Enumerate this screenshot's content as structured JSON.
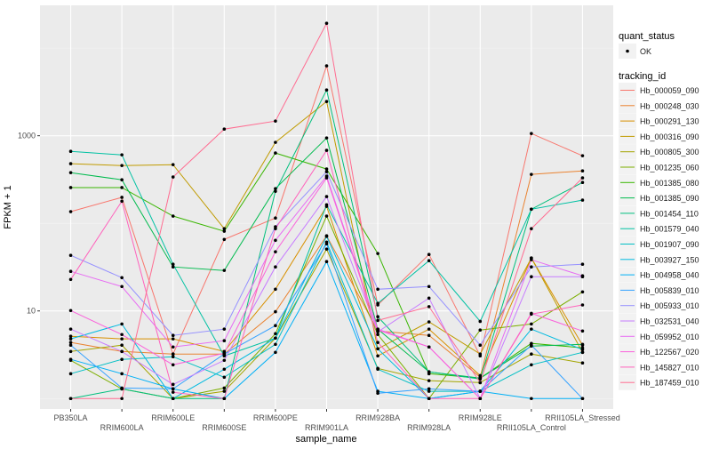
{
  "chart_data": {
    "type": "line",
    "xlabel": "sample_name",
    "ylabel": "FPKM + 1",
    "y_scale": "log10",
    "ylim": [
      0.76,
      30800
    ],
    "y_ticks": [
      10,
      1000
    ],
    "grid": true,
    "background": "#EBEBEB",
    "legend_position": "right",
    "categories": [
      "PB350LA",
      "RRIM600LA",
      "RRIM600LE",
      "RRIM600SE",
      "RRIM600PE",
      "RRIM901LA",
      "RRIM928BA",
      "RRIM928LA",
      "RRIM928LE",
      "RRII105LA_Control",
      "RRII105LA_Stressed"
    ],
    "shape_legend": {
      "title": "quant_status",
      "entries": [
        "OK"
      ]
    },
    "color_legend_title": "tracking_id",
    "series": [
      {
        "name": "Hb_000059_090",
        "color": "#F8766D",
        "values": [
          136,
          198,
          3.22,
          65.5,
          115,
          6270,
          11.7,
          44.1,
          3.07,
          1060,
          591
        ]
      },
      {
        "name": "Hb_000248_030",
        "color": "#EA8331",
        "values": [
          4.37,
          3.45,
          3.22,
          3.22,
          9.8,
          72.1,
          5.9,
          5.26,
          1.75,
          362,
          397
        ]
      },
      {
        "name": "Hb_000291_130",
        "color": "#D89000",
        "values": [
          5.14,
          4.8,
          4.8,
          3.45,
          17.7,
          156,
          3.07,
          6.2,
          1.83,
          40.2,
          4.07
        ]
      },
      {
        "name": "Hb_000316_090",
        "color": "#C09B00",
        "values": [
          480,
          457,
          468,
          86.9,
          840,
          2460,
          3.7,
          7.5,
          3.22,
          40.2,
          3.37
        ]
      },
      {
        "name": "Hb_000805_300",
        "color": "#A3A500",
        "values": [
          3.45,
          4.07,
          1,
          1.21,
          4.9,
          50.8,
          2.21,
          1.6,
          1.52,
          3.22,
          2.55
        ]
      },
      {
        "name": "Hb_001235_060",
        "color": "#7CAE00",
        "values": [
          2.73,
          1.29,
          1,
          1.32,
          5.5,
          121,
          5.38,
          1,
          6.05,
          7.1,
          16.5
        ]
      },
      {
        "name": "Hb_001385_080",
        "color": "#39B600",
        "values": [
          256,
          256,
          121,
          81.3,
          635,
          417,
          45.2,
          1.92,
          1.71,
          4.26,
          3.79
        ]
      },
      {
        "name": "Hb_001385_090",
        "color": "#00BB4E",
        "values": [
          379,
          314,
          31.8,
          29,
          249,
          943,
          6.2,
          2.02,
          1.71,
          3.97,
          4.16
        ]
      },
      {
        "name": "Hb_001454_110",
        "color": "#00BF7D",
        "values": [
          1,
          1.29,
          1,
          1,
          232,
          3330,
          8.6,
          2.02,
          1.67,
          145,
          293
        ]
      },
      {
        "name": "Hb_001579_040",
        "color": "#00C1A3",
        "values": [
          664,
          605,
          34.1,
          3.07,
          4.9,
          163,
          12.2,
          37.5,
          7.6,
          145,
          184
        ]
      },
      {
        "name": "Hb_001907_090",
        "color": "#00BFC4",
        "values": [
          1.92,
          2.8,
          3.0,
          1.75,
          4.16,
          61.1,
          2.16,
          1.21,
          1.21,
          2.43,
          3.37
        ]
      },
      {
        "name": "Hb_003927_150",
        "color": "#00BAE0",
        "values": [
          4.8,
          7.1,
          1,
          2.16,
          4.9,
          70.9,
          3.7,
          1,
          1.21,
          6.2,
          3.62
        ]
      },
      {
        "name": "Hb_004958_040",
        "color": "#00B0F6",
        "values": [
          2.8,
          1.92,
          1.29,
          1,
          3.37,
          36.6,
          1.21,
          1,
          1.21,
          1,
          1
        ]
      },
      {
        "name": "Hb_005839_010",
        "color": "#35A2FF",
        "values": [
          4.07,
          1.32,
          1.29,
          3.22,
          6.8,
          58.4,
          1.15,
          1.29,
          1.21,
          4.07,
          1
        ]
      },
      {
        "name": "Hb_005933_010",
        "color": "#9590FF",
        "values": [
          43.1,
          24,
          5.26,
          6.2,
          91.4,
          388,
          17.7,
          19,
          4.07,
          31.8,
          34.1
        ]
      },
      {
        "name": "Hb_032531_040",
        "color": "#C77CFF",
        "values": [
          6.2,
          3.45,
          1.45,
          2.73,
          31.8,
          202,
          5.77,
          14,
          1,
          24.6,
          24.6
        ]
      },
      {
        "name": "Hb_059952_010",
        "color": "#E76BF3",
        "values": [
          28.3,
          19,
          3.88,
          4.57,
          64,
          346,
          6.2,
          3.88,
          1,
          38.4,
          25.2
        ]
      },
      {
        "name": "Hb_122567_020",
        "color": "#FA62DB",
        "values": [
          10.1,
          5.38,
          2.43,
          3.29,
          47.4,
          330,
          6.05,
          3.88,
          1,
          9.4,
          5.9
        ]
      },
      {
        "name": "Hb_145827_010",
        "color": "#FF62BC",
        "values": [
          22.9,
          179,
          1.18,
          1,
          86.9,
          681,
          4.37,
          1,
          1,
          9.2,
          11.7
        ]
      },
      {
        "name": "Hb_187459_010",
        "color": "#FF6C91",
        "values": [
          1,
          1,
          338,
          1190,
          1470,
          19200,
          7.8,
          11.2,
          1.52,
          86.9,
          330
        ]
      }
    ]
  }
}
